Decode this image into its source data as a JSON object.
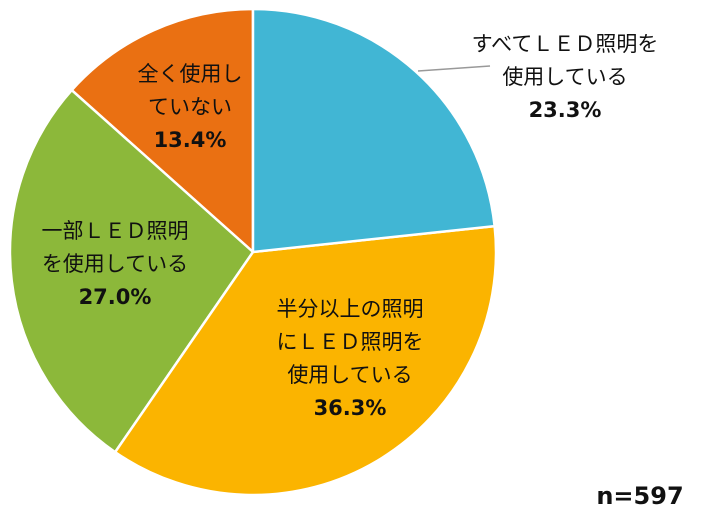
{
  "chart_data": {
    "type": "pie",
    "categories": [
      "すべてＬＥＤ照明を\n使用している",
      "半分以上の照明\nにＬＥＤ照明を\n使用している",
      "一部ＬＥＤ照明\nを使用している",
      "全く使用し\nていない"
    ],
    "values": [
      23.3,
      36.3,
      27.0,
      13.4
    ],
    "value_labels": [
      "23.3%",
      "36.3%",
      "27.0%",
      "13.4%"
    ],
    "colors": [
      "#41b6d4",
      "#fbb400",
      "#8cb83a",
      "#ea7012"
    ],
    "annotation": "n=597"
  }
}
